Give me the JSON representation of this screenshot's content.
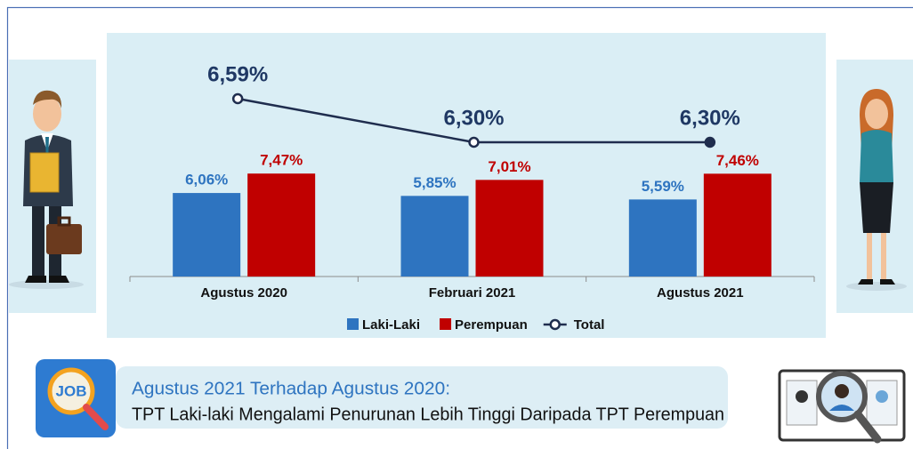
{
  "chart_data": {
    "type": "bar",
    "categories": [
      "Agustus 2020",
      "Februari 2021",
      "Agustus 2021"
    ],
    "series": [
      {
        "name": "Laki-Laki",
        "type": "bar",
        "color": "#2e74c0",
        "values": [
          6.06,
          5.85,
          5.59
        ],
        "value_labels": [
          "6,06%",
          "5,85%",
          "5,59%"
        ]
      },
      {
        "name": "Perempuan",
        "type": "bar",
        "color": "#c00000",
        "values": [
          7.47,
          7.01,
          7.46
        ],
        "value_labels": [
          "7,47%",
          "7,01%",
          "7,46%"
        ]
      },
      {
        "name": "Total",
        "type": "line",
        "color": "#1f2d4e",
        "values": [
          6.59,
          6.3,
          6.3
        ],
        "value_labels": [
          "6,59%",
          "6,30%",
          "6,30%"
        ]
      }
    ]
  },
  "banner": {
    "icon": "JOB",
    "title": "Agustus 2021 Terhadap Agustus 2020:",
    "text": "TPT Laki-laki Mengalami Penurunan Lebih Tinggi Daripada TPT Perempuan"
  }
}
